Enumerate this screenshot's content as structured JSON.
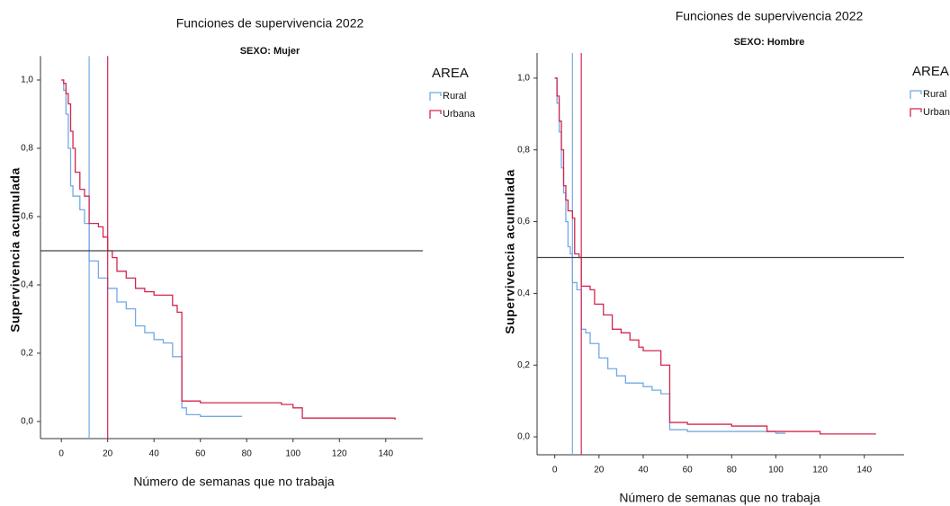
{
  "chart_data": [
    {
      "type": "step",
      "title": "Funciones de supervivencia 2022",
      "subtitle": "SEXO: Mujer",
      "x_label": "Número de semanas que no trabaja",
      "y_label": "Supervivencia acumulada",
      "legend_title": "AREA",
      "xlim": [
        -9,
        156
      ],
      "ylim": [
        -0.05,
        1.07
      ],
      "xticks": [
        0,
        20,
        40,
        60,
        80,
        100,
        120,
        140
      ],
      "yticks": [
        {
          "value": 0,
          "label": "0,0"
        },
        {
          "value": 0.2,
          "label": "0,2"
        },
        {
          "value": 0.4,
          "label": "0,4"
        },
        {
          "value": 0.6,
          "label": "0,6"
        },
        {
          "value": 0.8,
          "label": "0,8"
        },
        {
          "value": 1,
          "label": "1,0"
        }
      ],
      "reference_y": 0.5,
      "series": [
        {
          "name": "Rural",
          "color": "#74a9e6",
          "median": 12,
          "x": [
            0,
            1,
            2,
            3,
            4,
            5,
            8,
            10,
            12,
            12,
            16,
            20,
            24,
            28,
            32,
            36,
            40,
            44,
            48,
            52,
            54,
            60,
            78
          ],
          "values": [
            1.0,
            0.97,
            0.9,
            0.8,
            0.69,
            0.66,
            0.62,
            0.58,
            0.56,
            0.47,
            0.42,
            0.39,
            0.35,
            0.33,
            0.28,
            0.26,
            0.24,
            0.23,
            0.19,
            0.04,
            0.02,
            0.015,
            0.015
          ]
        },
        {
          "name": "Urbana",
          "color": "#d4264f",
          "median": 20,
          "x": [
            0,
            1,
            2,
            3,
            4,
            5,
            6,
            8,
            10,
            12,
            16,
            18,
            20,
            20,
            22,
            24,
            28,
            32,
            36,
            40,
            48,
            50,
            52,
            60,
            95,
            100,
            104,
            144
          ],
          "values": [
            1.0,
            0.99,
            0.96,
            0.93,
            0.85,
            0.8,
            0.73,
            0.68,
            0.66,
            0.58,
            0.57,
            0.54,
            0.53,
            0.5,
            0.48,
            0.44,
            0.42,
            0.39,
            0.38,
            0.37,
            0.34,
            0.32,
            0.06,
            0.055,
            0.05,
            0.04,
            0.01,
            0.005
          ]
        }
      ]
    },
    {
      "type": "step",
      "title": "Funciones de supervivencia 2022",
      "subtitle": "SEXO: Hombre",
      "x_label": "Número de semanas que no trabaja",
      "y_label": "Supervivencia acumulada",
      "legend_title": "AREA",
      "xlim": [
        -8,
        158
      ],
      "ylim": [
        -0.05,
        1.07
      ],
      "xticks": [
        0,
        20,
        40,
        60,
        80,
        100,
        120,
        140
      ],
      "yticks": [
        {
          "value": 0,
          "label": "0,0"
        },
        {
          "value": 0.2,
          "label": "0,2"
        },
        {
          "value": 0.4,
          "label": "0,4"
        },
        {
          "value": 0.6,
          "label": "0,6"
        },
        {
          "value": 0.8,
          "label": "0,8"
        },
        {
          "value": 1,
          "label": "1,0"
        }
      ],
      "reference_y": 0.5,
      "series": [
        {
          "name": "Rural",
          "color": "#74a9e6",
          "median": 8,
          "x": [
            0,
            1,
            2,
            3,
            4,
            5,
            6,
            7,
            8,
            10,
            12,
            14,
            16,
            20,
            24,
            28,
            32,
            40,
            44,
            48,
            52,
            60,
            100,
            104
          ],
          "values": [
            1.0,
            0.93,
            0.85,
            0.75,
            0.68,
            0.6,
            0.53,
            0.51,
            0.43,
            0.41,
            0.3,
            0.29,
            0.26,
            0.22,
            0.19,
            0.17,
            0.15,
            0.14,
            0.13,
            0.12,
            0.02,
            0.015,
            0.01,
            0.008
          ]
        },
        {
          "name": "Urbana",
          "color": "#d4264f",
          "median": 12,
          "x": [
            0,
            1,
            2,
            3,
            4,
            5,
            6,
            8,
            9,
            11,
            12,
            16,
            18,
            22,
            26,
            30,
            34,
            38,
            40,
            48,
            52,
            52,
            60,
            80,
            96,
            120,
            145
          ],
          "values": [
            1.0,
            0.95,
            0.88,
            0.8,
            0.7,
            0.66,
            0.63,
            0.61,
            0.51,
            0.5,
            0.42,
            0.41,
            0.37,
            0.34,
            0.3,
            0.29,
            0.27,
            0.25,
            0.24,
            0.2,
            0.19,
            0.04,
            0.035,
            0.03,
            0.015,
            0.008,
            0.006
          ]
        }
      ]
    }
  ]
}
